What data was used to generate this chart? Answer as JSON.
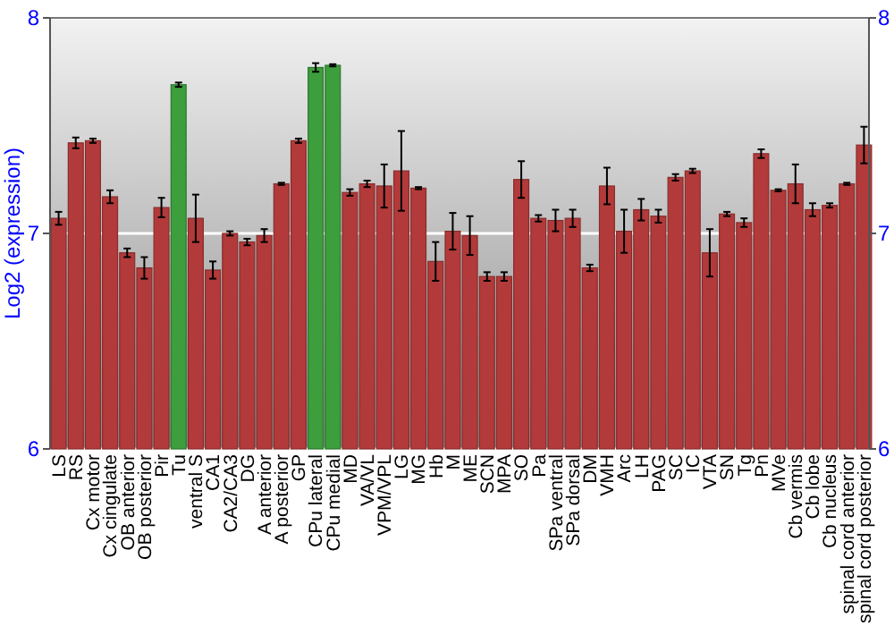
{
  "chart_data": {
    "type": "bar",
    "ylabel": "Log2 (expression)",
    "categories": [
      "LS",
      "RS",
      "Cx motor",
      "Cx cingulate",
      "OB anterior",
      "OB posterior",
      "Pir",
      "Tu",
      "ventral S",
      "CA1",
      "CA2/CA3",
      "DG",
      "A anterior",
      "A posterior",
      "GP",
      "CPu lateral",
      "CPu medial",
      "MD",
      "VA/VL",
      "VPM/VPL",
      "LG",
      "MG",
      "Hb",
      "M",
      "ME",
      "SCN",
      "MPA",
      "SO",
      "Pa",
      "SPa ventral",
      "SPa dorsal",
      "DM",
      "VMH",
      "Arc",
      "LH",
      "PAG",
      "SC",
      "IC",
      "VTA",
      "SN",
      "Tg",
      "Pn",
      "MVe",
      "Cb vermis",
      "Cb lobe",
      "Cb nucleus",
      "spinal cord anterior",
      "spinal cord posterior"
    ],
    "values": [
      7.07,
      7.42,
      7.43,
      7.17,
      6.91,
      6.84,
      7.12,
      7.69,
      7.07,
      6.83,
      7.0,
      6.96,
      6.99,
      7.23,
      7.43,
      7.77,
      7.78,
      7.19,
      7.23,
      7.22,
      7.29,
      7.21,
      6.87,
      7.01,
      6.99,
      6.8,
      6.8,
      7.25,
      7.07,
      7.06,
      7.07,
      6.84,
      7.22,
      7.01,
      7.11,
      7.08,
      7.26,
      7.29,
      6.91,
      7.09,
      7.05,
      7.37,
      7.2,
      7.23,
      7.11,
      7.13,
      7.23,
      7.41
    ],
    "errors": [
      0.03,
      0.025,
      0.01,
      0.03,
      0.02,
      0.05,
      0.045,
      0.01,
      0.11,
      0.04,
      0.01,
      0.015,
      0.03,
      0.005,
      0.01,
      0.02,
      0.005,
      0.015,
      0.015,
      0.1,
      0.185,
      0.005,
      0.09,
      0.085,
      0.09,
      0.02,
      0.02,
      0.085,
      0.015,
      0.05,
      0.04,
      0.015,
      0.085,
      0.1,
      0.05,
      0.03,
      0.015,
      0.01,
      0.11,
      0.01,
      0.02,
      0.02,
      0.005,
      0.09,
      0.03,
      0.01,
      0.005,
      0.085
    ],
    "colors": [
      "#b33a3a",
      "#b33a3a",
      "#b33a3a",
      "#b33a3a",
      "#b33a3a",
      "#b33a3a",
      "#b33a3a",
      "#3c9e3c",
      "#b33a3a",
      "#b33a3a",
      "#b33a3a",
      "#b33a3a",
      "#b33a3a",
      "#b33a3a",
      "#b33a3a",
      "#3c9e3c",
      "#3c9e3c",
      "#b33a3a",
      "#b33a3a",
      "#b33a3a",
      "#b33a3a",
      "#b33a3a",
      "#b33a3a",
      "#b33a3a",
      "#b33a3a",
      "#b33a3a",
      "#b33a3a",
      "#b33a3a",
      "#b33a3a",
      "#b33a3a",
      "#b33a3a",
      "#b33a3a",
      "#b33a3a",
      "#b33a3a",
      "#b33a3a",
      "#b33a3a",
      "#b33a3a",
      "#b33a3a",
      "#b33a3a",
      "#b33a3a",
      "#b33a3a",
      "#b33a3a",
      "#b33a3a",
      "#b33a3a",
      "#b33a3a",
      "#b33a3a",
      "#b33a3a",
      "#b33a3a"
    ],
    "ylim": [
      6,
      8
    ],
    "yticks": [
      6,
      7,
      8
    ],
    "y2lim": [
      6,
      8
    ],
    "y2ticks": [
      6,
      7,
      8
    ],
    "grid": "y"
  }
}
